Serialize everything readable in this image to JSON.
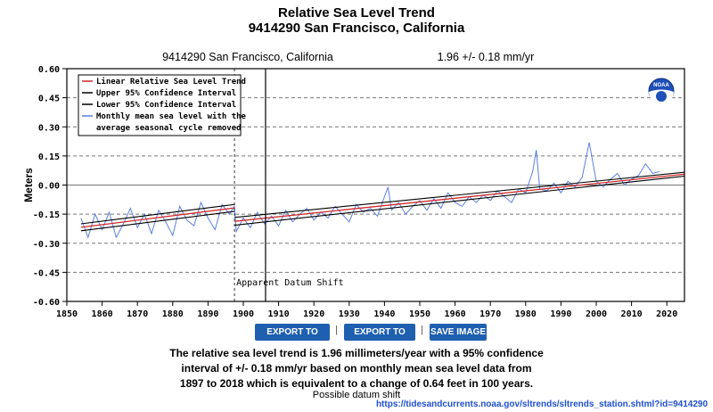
{
  "page": {
    "title_line1": "Relative Sea Level Trend",
    "title_line2": "9414290 San Francisco, California",
    "buttons": {
      "export_text": "EXPORT TO TEXT",
      "export_csv": "EXPORT TO CSV",
      "save_image": "SAVE IMAGE"
    },
    "separator": "|",
    "summary_lines": [
      "The relative sea level trend is 1.96 millimeters/year with a 95% confidence",
      "interval of +/- 0.18 mm/yr based on monthly mean sea level data from",
      "1897 to 2018 which is equivalent to a change of 0.64 feet in 100 years."
    ],
    "caption": "Possible datum shift",
    "url": "https://tidesandcurrents.noaa.gov/sltrends/sltrends_station.shtml?id=9414290",
    "logo_text": "NOAA"
  },
  "chart_data": {
    "type": "line",
    "station_label": "9414290 San Francisco, California",
    "trend_label": "1.96 +/-  0.18 mm/yr",
    "ylabel": "Meters",
    "xlabel": "",
    "xlim": [
      1850,
      2025
    ],
    "ylim": [
      -0.6,
      0.6
    ],
    "x_ticks": [
      1850,
      1860,
      1870,
      1880,
      1890,
      1900,
      1910,
      1920,
      1930,
      1940,
      1950,
      1960,
      1970,
      1980,
      1990,
      2000,
      2010,
      2020
    ],
    "y_ticks": [
      0.6,
      0.45,
      0.3,
      0.15,
      0.0,
      -0.15,
      -0.3,
      -0.45,
      -0.6
    ],
    "y_tick_labels": [
      "0.60",
      "0.45",
      "0.30",
      "0.15",
      "0.00",
      "-0.15",
      "-0.30",
      "-0.45",
      "-0.60"
    ],
    "grid": "horizontal dashed",
    "legend": {
      "placement": "top-left",
      "entries": [
        {
          "label": "Linear Relative Sea Level Trend",
          "color": "#d12a2a"
        },
        {
          "label": "Upper 95% Confidence Interval",
          "color": "#000000"
        },
        {
          "label": "Lower 95% Confidence Interval",
          "color": "#000000"
        },
        {
          "label": "Monthly mean sea level with the",
          "label2": "average seasonal cycle removed",
          "color": "#5b7fe0"
        }
      ]
    },
    "annotation": {
      "text": "Apparent Datum Shift",
      "x": 1897.5
    },
    "vertical_line_x": 1906.3,
    "monthly_color": "#5b7fe0",
    "trend_segments": [
      {
        "x": [
          1854,
          1897.5
        ],
        "trend": [
          -0.218,
          -0.118
        ],
        "upper": [
          -0.2,
          -0.1
        ],
        "lower": [
          -0.236,
          -0.136
        ]
      },
      {
        "x": [
          1897.5,
          2025
        ],
        "trend": [
          -0.187,
          0.056
        ],
        "upper": [
          -0.167,
          0.066
        ],
        "lower": [
          -0.207,
          0.046
        ]
      }
    ],
    "monthly_series": {
      "x": [
        1854.0,
        1856.0,
        1858.0,
        1860.0,
        1862.0,
        1864.0,
        1866.0,
        1868.0,
        1870.0,
        1872.0,
        1874.0,
        1876.0,
        1878.0,
        1880.0,
        1882.0,
        1884.0,
        1886.0,
        1888.0,
        1890.0,
        1892.0,
        1894.0,
        1896.0,
        1897.5,
        1898.0,
        1900.0,
        1902.0,
        1904.0,
        1906.0,
        1908.0,
        1910.0,
        1912.0,
        1914.0,
        1916.0,
        1918.0,
        1920.0,
        1922.0,
        1924.0,
        1926.0,
        1928.0,
        1930.0,
        1932.0,
        1934.0,
        1936.0,
        1938.0,
        1940.0,
        1941.0,
        1942.0,
        1944.0,
        1946.0,
        1948.0,
        1950.0,
        1952.0,
        1954.0,
        1956.0,
        1958.0,
        1960.0,
        1962.0,
        1964.0,
        1966.0,
        1968.0,
        1970.0,
        1972.0,
        1974.0,
        1976.0,
        1978.0,
        1980.0,
        1982.0,
        1983.0,
        1984.0,
        1986.0,
        1988.0,
        1990.0,
        1992.0,
        1994.0,
        1996.0,
        1998.0,
        2000.0,
        2002.0,
        2004.0,
        2006.0,
        2008.0,
        2010.0,
        2012.0,
        2014.0,
        2016.0,
        2018.0
      ],
      "y": [
        -0.17,
        -0.27,
        -0.15,
        -0.23,
        -0.14,
        -0.27,
        -0.2,
        -0.12,
        -0.22,
        -0.15,
        -0.25,
        -0.13,
        -0.19,
        -0.26,
        -0.11,
        -0.18,
        -0.21,
        -0.09,
        -0.17,
        -0.23,
        -0.1,
        -0.15,
        -0.11,
        -0.24,
        -0.17,
        -0.22,
        -0.14,
        -0.2,
        -0.16,
        -0.21,
        -0.13,
        -0.19,
        -0.15,
        -0.12,
        -0.18,
        -0.14,
        -0.17,
        -0.11,
        -0.15,
        -0.19,
        -0.1,
        -0.14,
        -0.12,
        -0.16,
        -0.06,
        -0.01,
        -0.13,
        -0.09,
        -0.15,
        -0.11,
        -0.08,
        -0.13,
        -0.07,
        -0.12,
        -0.04,
        -0.09,
        -0.11,
        -0.06,
        -0.09,
        -0.05,
        -0.08,
        -0.03,
        -0.06,
        -0.09,
        -0.02,
        -0.04,
        0.07,
        0.18,
        -0.02,
        -0.03,
        0.01,
        -0.04,
        0.02,
        -0.01,
        0.04,
        0.22,
        0.02,
        -0.01,
        0.03,
        0.06,
        0.0,
        0.03,
        0.05,
        0.11,
        0.06,
        0.07
      ]
    }
  }
}
